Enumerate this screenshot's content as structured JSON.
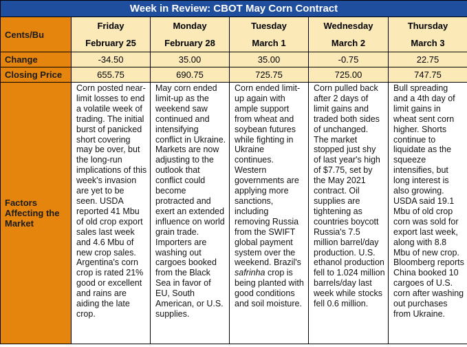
{
  "title": "Week in Review: CBOT May Corn Contract",
  "row_labels": {
    "units": "Cents/Bu",
    "change": "Change",
    "closing": "Closing Price",
    "factors": "Factors Affecting the Market"
  },
  "days": [
    {
      "day": "Friday",
      "date": "February 25",
      "change": "-34.50",
      "close": "655.75",
      "factors": "Corn posted near-limit losses to end a volatile week of trading. The initial burst of panicked short covering may be over, but the long-run implications of this week's invasion are yet to be seen. USDA reported 41 Mbu of old crop export sales last week and 4.6 Mbu of new crop sales. Argentina's corn crop is rated 21% good or excellent and rains are aiding the late crop."
    },
    {
      "day": "Monday",
      "date": "February 28",
      "change": "35.00",
      "close": "690.75",
      "factors": "May corn ended limit-up as the weekend saw continued and intensifying conflict in Ukraine. Markets are now adjusting to the outlook that conflict could become protracted and exert an extended influence on world grain trade. Importers are washing out cargoes booked from the Black Sea in favor of EU, South American, or U.S. supplies."
    },
    {
      "day": "Tuesday",
      "date": "March 1",
      "change": "35.00",
      "close": "725.75",
      "factors_pre": "Corn ended limit-up again with ample support from wheat and soybean futures while fighting in Ukraine continues. Western governments are applying more sanctions, including removing Russia from the SWIFT global payment system over the weekend. Brazil's ",
      "factors_italic": "safrinha",
      "factors_post": " crop is being planted with good conditions and soil moisture."
    },
    {
      "day": "Wednesday",
      "date": "March 2",
      "change": "-0.75",
      "close": "725.00",
      "factors": "Corn pulled back after 2 days of limit gains and traded both sides of unchanged. The market stopped just shy of last year's high of $7.75, set by the May 2021 contract. Oil supplies are tightening as countries boycott Russia's 7.5 million barrel/day production. U.S. ethanol production fell to 1.024 million barrels/day last week while stocks fell 0.6 million."
    },
    {
      "day": "Thursday",
      "date": "March 3",
      "change": "22.75",
      "close": "747.75",
      "factors": "Bull spreading and a 4th day of limit gains in wheat sent corn higher. Shorts continue to liquidate as the squeeze intensifies, but long interest is also growing. USDA said 19.1 Mbu of old crop corn was sold for export last week, along with 8.8 Mbu of new crop. Bloomberg reports China booked 10 cargoes of U.S. corn after washing out purchases from Ukraine."
    }
  ]
}
